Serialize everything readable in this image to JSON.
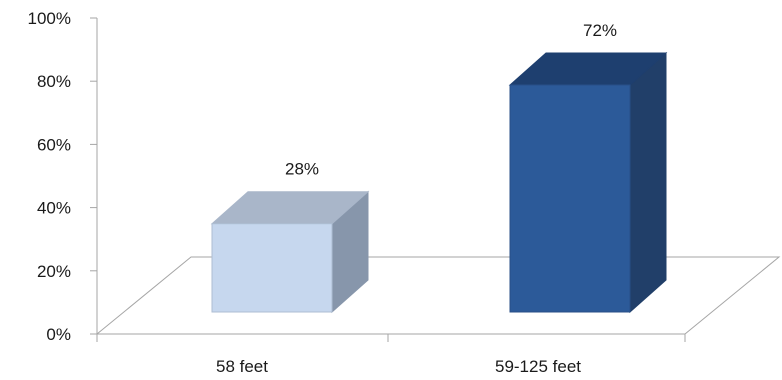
{
  "chart_data": {
    "type": "bar",
    "title": "",
    "xlabel": "",
    "ylabel": "",
    "categories": [
      "58 feet",
      "59-125 feet"
    ],
    "values": [
      28,
      72
    ],
    "data_labels": [
      "28%",
      "72%"
    ],
    "ylim": [
      0,
      100
    ],
    "yticks": [
      0,
      20,
      40,
      60,
      80,
      100
    ],
    "ytick_labels": [
      "0%",
      "20%",
      "40%",
      "60%",
      "80%",
      "100%"
    ],
    "grid": false,
    "legend": "none",
    "style": "3d-column",
    "bar_colors": [
      "#c6d7ee",
      "#2c5a99"
    ],
    "bar_top_colors": [
      "#a9b6c9",
      "#1e3f6f"
    ],
    "bar_side_colors": [
      "#8796ab",
      "#213f69"
    ]
  }
}
